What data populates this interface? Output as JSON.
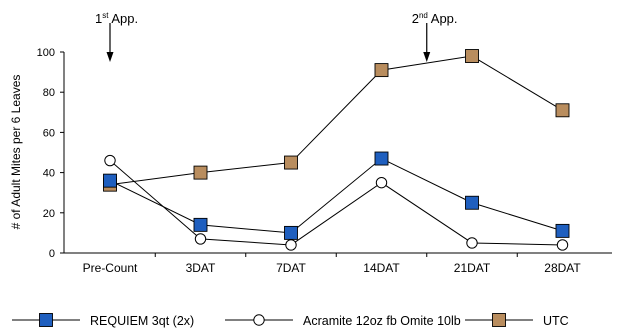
{
  "chart_data": {
    "type": "line",
    "title": "",
    "xlabel": "",
    "ylabel": "# of Adult Mites per 6 Leaves",
    "categories": [
      "Pre-Count",
      "3DAT",
      "7DAT",
      "14DAT",
      "21DAT",
      "28DAT"
    ],
    "ylim": [
      0,
      100
    ],
    "yticks": [
      0,
      20,
      40,
      60,
      80,
      100
    ],
    "grid": false,
    "legend_position": "bottom",
    "series": [
      {
        "name": "REQUIEM 3qt (2x)",
        "marker": "square",
        "color": "#1f5fbf",
        "values": [
          36,
          14,
          10,
          47,
          25,
          11
        ]
      },
      {
        "name": "Acramite 12oz fb Omite 10lb",
        "marker": "circle-open",
        "color": "#ffffff",
        "values": [
          46,
          7,
          4,
          35,
          5,
          4
        ]
      },
      {
        "name": "UTC",
        "marker": "square",
        "color": "#b98d5e",
        "values": [
          34,
          40,
          45,
          91,
          98,
          71
        ]
      }
    ],
    "annotations": [
      {
        "base": "1",
        "sup": "st",
        "rest": " App.",
        "at_category": 0
      },
      {
        "base": "2",
        "sup": "nd",
        "rest": " App.",
        "at_category": 3.5
      }
    ]
  }
}
